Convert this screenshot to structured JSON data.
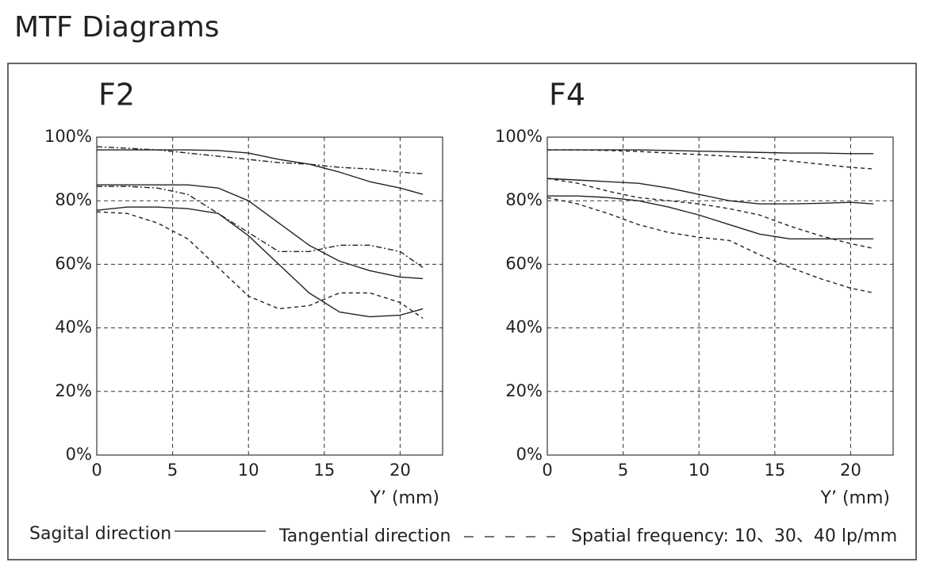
{
  "title": "MTF Diagrams",
  "chart_data": [
    {
      "type": "line",
      "title": "F2",
      "xlabel": "Y’ (mm)",
      "x": [
        0,
        2,
        4,
        6,
        8,
        10,
        12,
        14,
        16,
        18,
        20,
        21.5
      ],
      "xlim": [
        0,
        22.8
      ],
      "xticks": [
        0,
        5,
        10,
        15,
        20
      ],
      "ylim": [
        0,
        100
      ],
      "yticks": [
        {
          "value": 0,
          "label": "0%"
        },
        {
          "value": 20,
          "label": "20%"
        },
        {
          "value": 40,
          "label": "40%"
        },
        {
          "value": 60,
          "label": "60%"
        },
        {
          "value": 80,
          "label": "80%"
        },
        {
          "value": 100,
          "label": "100%"
        }
      ],
      "grid": true,
      "series": [
        {
          "color": "#222222",
          "dash": "none",
          "values": [
            96,
            96,
            96,
            96,
            95.8,
            95,
            93,
            91.5,
            89,
            86,
            84,
            82
          ]
        },
        {
          "color": "#222222",
          "dash": "7 3 2 3",
          "values": [
            97,
            96.5,
            96,
            95,
            94,
            93,
            92,
            91.5,
            90.5,
            90,
            89,
            88.5
          ]
        },
        {
          "color": "#222222",
          "dash": "none",
          "values": [
            85,
            85,
            85,
            85,
            84,
            80,
            73,
            66,
            61,
            58,
            56,
            55.5
          ]
        },
        {
          "color": "#222222",
          "dash": "7 3 2 3",
          "values": [
            84.5,
            84.5,
            84,
            82,
            76,
            70,
            64,
            64,
            66,
            66,
            64,
            59
          ]
        },
        {
          "color": "#222222",
          "dash": "none",
          "values": [
            77,
            78,
            78,
            77.5,
            76,
            69,
            60,
            51,
            45,
            43.5,
            44,
            46
          ]
        },
        {
          "color": "#222222",
          "dash": "5 4",
          "values": [
            76.5,
            76,
            73,
            68,
            59,
            50,
            46,
            47,
            51,
            51,
            48,
            43
          ]
        }
      ]
    },
    {
      "type": "line",
      "title": "F4",
      "xlabel": "Y’ (mm)",
      "x": [
        0,
        2,
        4,
        6,
        8,
        10,
        12,
        14,
        16,
        18,
        20,
        21.5
      ],
      "xlim": [
        0,
        22.8
      ],
      "xticks": [
        0,
        5,
        10,
        15,
        20
      ],
      "ylim": [
        0,
        100
      ],
      "yticks": [
        {
          "value": 0,
          "label": "0%"
        },
        {
          "value": 20,
          "label": "20%"
        },
        {
          "value": 40,
          "label": "40%"
        },
        {
          "value": 60,
          "label": "60%"
        },
        {
          "value": 80,
          "label": "80%"
        },
        {
          "value": 100,
          "label": "100%"
        }
      ],
      "grid": true,
      "series": [
        {
          "color": "#222222",
          "dash": "none",
          "values": [
            96,
            96,
            96,
            96,
            95.8,
            95.6,
            95.4,
            95.2,
            95,
            95,
            94.8,
            94.8
          ]
        },
        {
          "color": "#222222",
          "dash": "5 4",
          "values": [
            96,
            96,
            95.8,
            95.5,
            95,
            94.5,
            94,
            93.5,
            92.5,
            91.5,
            90.5,
            90
          ]
        },
        {
          "color": "#222222",
          "dash": "none",
          "values": [
            87,
            86.5,
            86,
            85.5,
            84,
            82,
            80,
            79,
            79,
            79.2,
            79.5,
            79
          ]
        },
        {
          "color": "#222222",
          "dash": "5 4",
          "values": [
            87,
            85.5,
            83,
            81,
            80,
            79,
            77.5,
            75.5,
            72,
            69,
            66.5,
            65
          ]
        },
        {
          "color": "#222222",
          "dash": "none",
          "values": [
            81.5,
            81.5,
            81,
            80,
            78,
            75.5,
            72.5,
            69.5,
            68,
            68,
            68,
            68
          ]
        },
        {
          "color": "#222222",
          "dash": "5 4",
          "values": [
            81,
            79,
            76,
            72.5,
            70,
            68.5,
            67.5,
            63,
            59,
            55.5,
            52.5,
            51
          ]
        }
      ]
    }
  ],
  "legend": {
    "entries": [
      {
        "label": "Sagital direction",
        "dash": "none"
      },
      {
        "label": "Tangential direction",
        "dash": "12 14"
      }
    ],
    "note": "Spatial frequency: 10、30、40 lp/mm"
  }
}
